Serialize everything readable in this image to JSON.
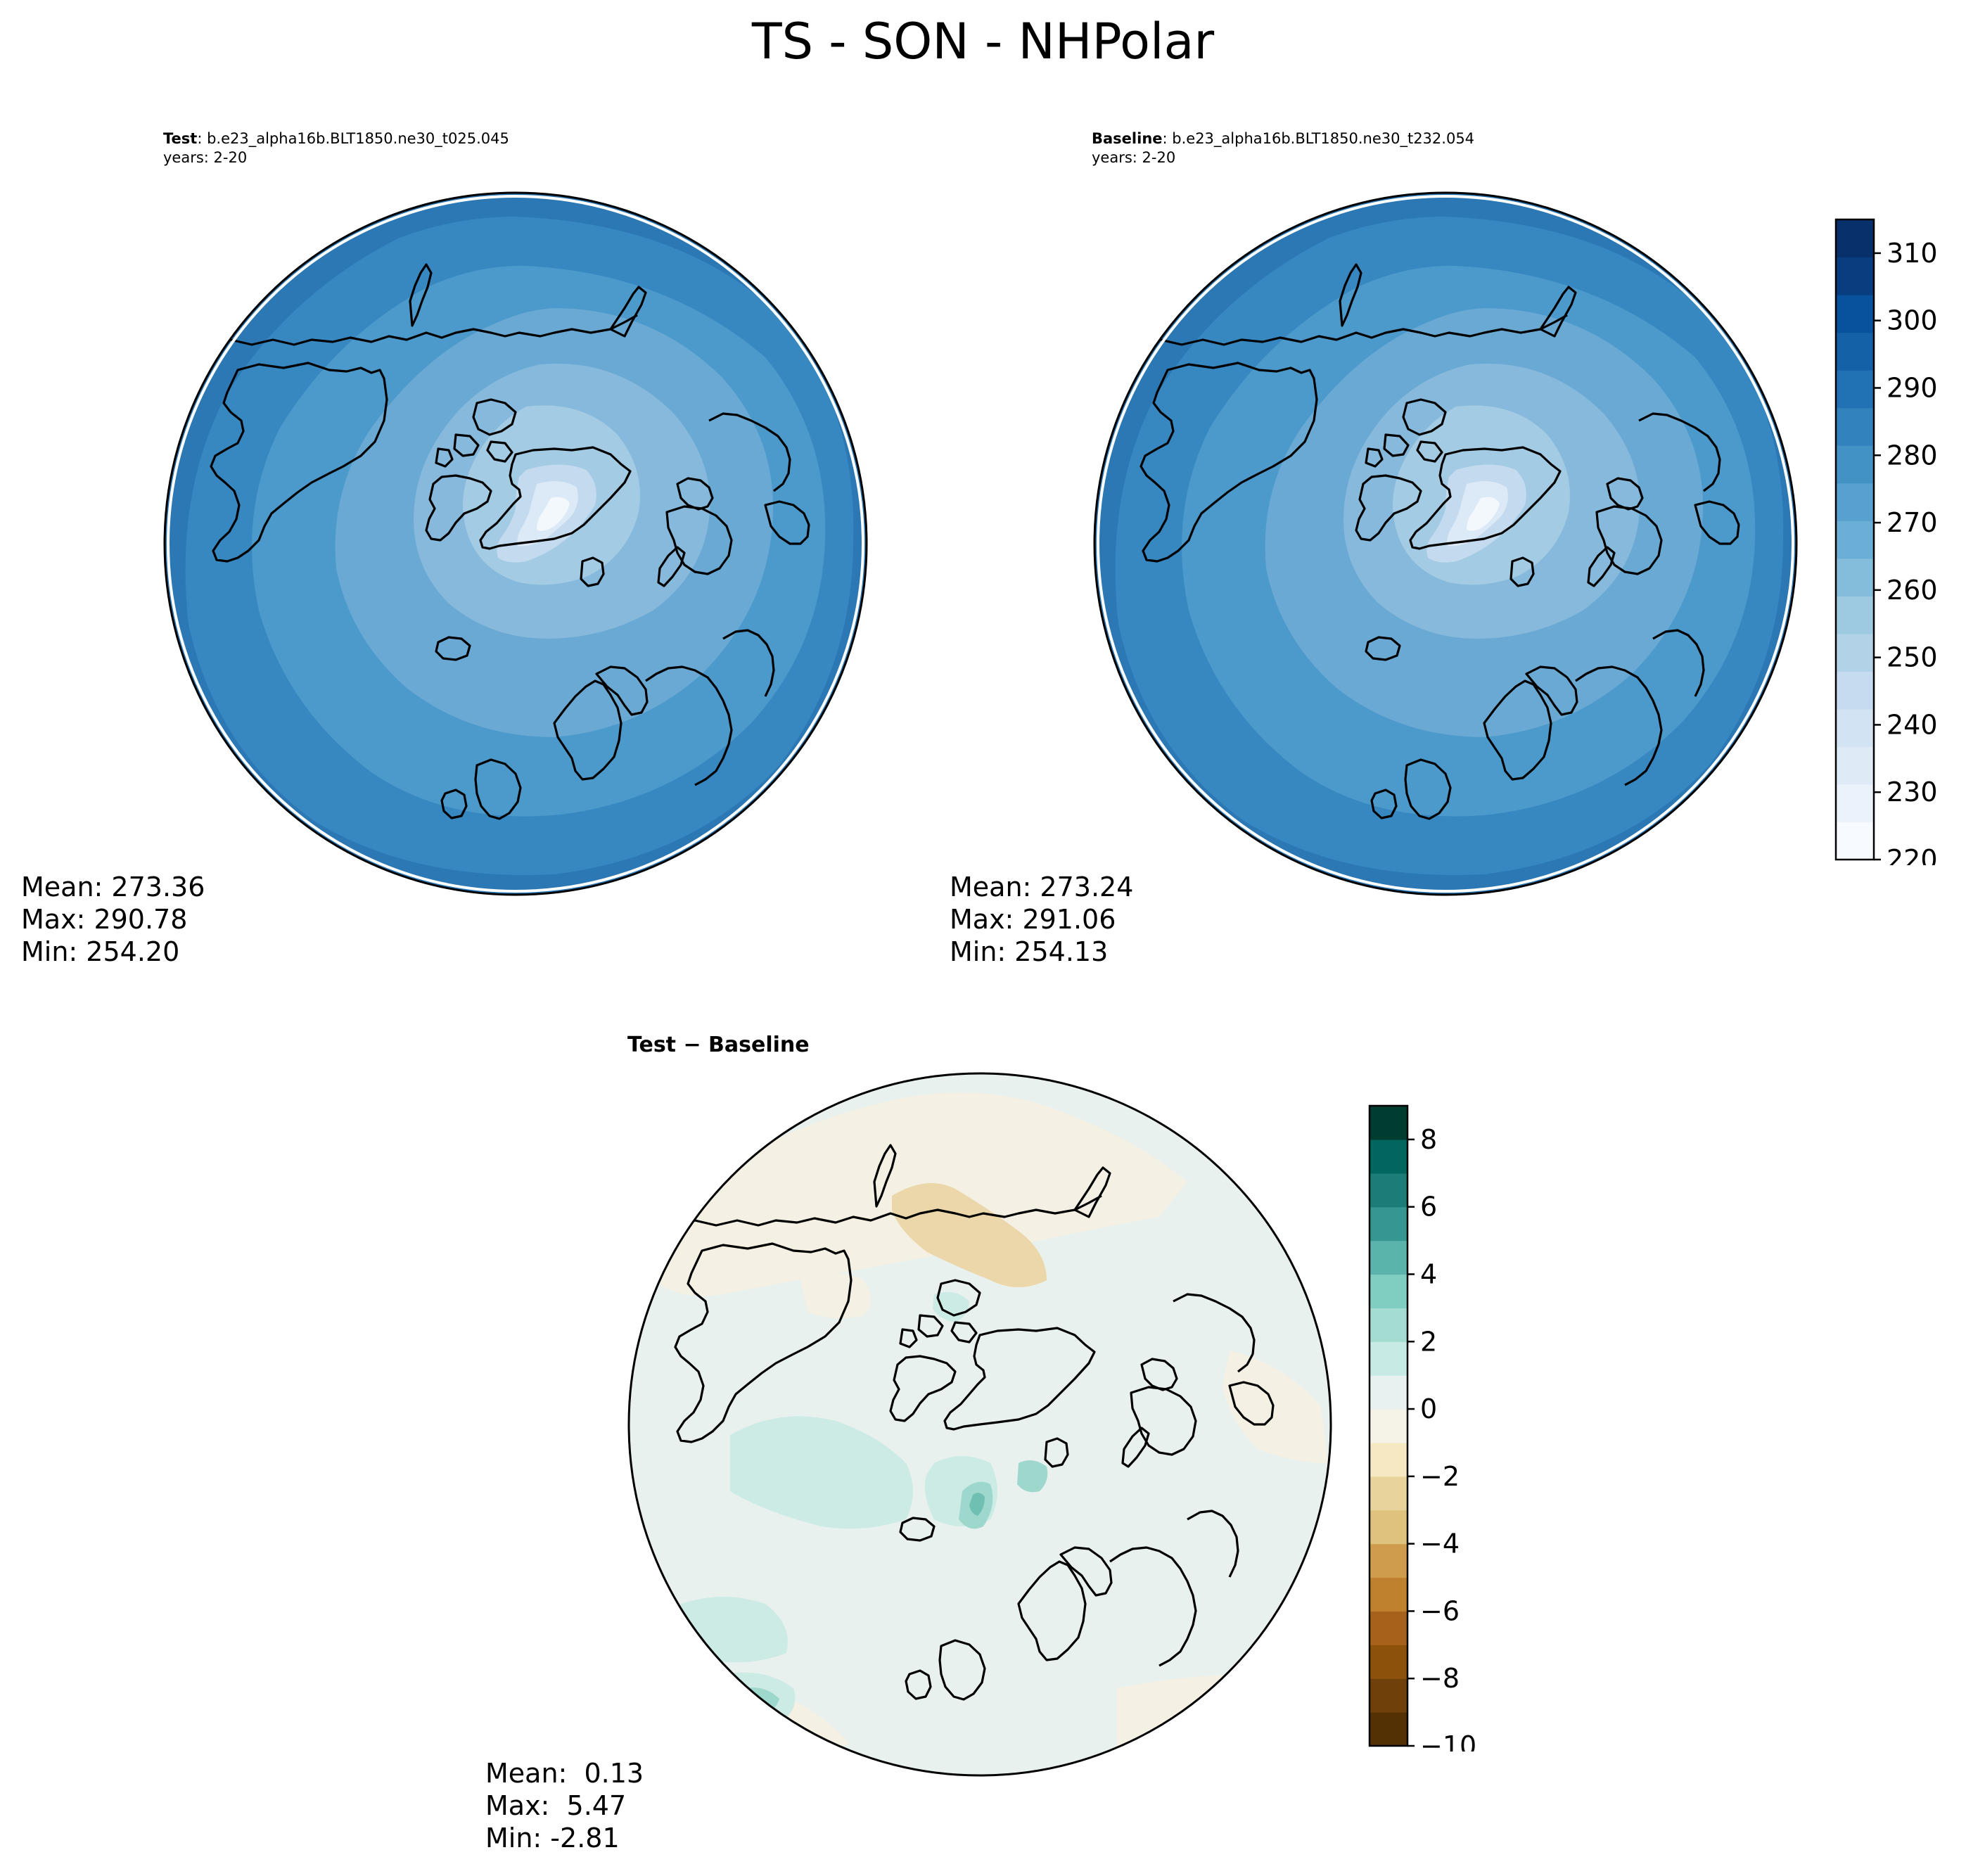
{
  "figure": {
    "title": "TS - SON - NHPolar"
  },
  "panels": {
    "test": {
      "label": "Test",
      "case": ": b.e23_alpha16b.BLT1850.ne30_t025.045",
      "years": "years: 2-20",
      "stats": {
        "mean": "Mean: 273.36",
        "max": "Max: 290.78",
        "min": "Min: 254.20"
      }
    },
    "baseline": {
      "label": "Baseline",
      "case": ": b.e23_alpha16b.BLT1850.ne30_t232.054",
      "years": "years: 2-20",
      "stats": {
        "mean": "Mean: 273.24",
        "max": "Max: 291.06",
        "min": "Min: 254.13"
      }
    },
    "diff": {
      "title": "Test − Baseline",
      "stats": {
        "mean": "Mean:  0.13",
        "max": "Max:  5.47",
        "min": "Min: -2.81"
      }
    }
  },
  "colorbars": {
    "main": {
      "ticks": [
        "310",
        "300",
        "290",
        "280",
        "270",
        "260",
        "250",
        "240",
        "230",
        "220"
      ],
      "tick_values": [
        310,
        300,
        290,
        280,
        270,
        260,
        250,
        240,
        230,
        220
      ],
      "range": [
        220,
        315
      ],
      "colors": [
        "#f7fbff",
        "#eaf3fb",
        "#deebf7",
        "#d2e3f3",
        "#c6dbef",
        "#b2d2e8",
        "#9ecae1",
        "#84bcdb",
        "#6baed6",
        "#57a0cf",
        "#4292c6",
        "#3282be",
        "#2171b5",
        "#1461a8",
        "#08519c",
        "#083e80",
        "#08306b"
      ]
    },
    "diff": {
      "ticks": [
        "8",
        "6",
        "4",
        "2",
        "0",
        "−2",
        "−4",
        "−6",
        "−8",
        "−10"
      ],
      "tick_values": [
        8,
        6,
        4,
        2,
        0,
        -2,
        -4,
        -6,
        -8,
        -10
      ],
      "range": [
        -10,
        9
      ],
      "colors": [
        "#543005",
        "#6f400a",
        "#8c510a",
        "#a6611a",
        "#bf812d",
        "#cf9c4d",
        "#dfc27d",
        "#e8d49b",
        "#f6e8c3",
        "#f5f2e8",
        "#e8f1ef",
        "#c7eae5",
        "#a4dcd2",
        "#80cdc1",
        "#5ab4ac",
        "#35978f",
        "#1b7d76",
        "#01665e",
        "#003c30"
      ]
    }
  },
  "maps": {
    "main_colors": {
      "outer": "#2b78b5",
      "ring2": "#3787c1",
      "ring3": "#4c99cb",
      "ring4": "#69a9d4",
      "ring5": "#86b9db",
      "ring6": "#a3cbe3",
      "ice1": "#c4daee",
      "ice2": "#dce9f6",
      "ice3": "#f3f8fd"
    },
    "diff_colors": {
      "background": "#e9f1ef",
      "warm": "#f4f0e3",
      "orange": "#ebd7a9",
      "teal1": "#cdebe5",
      "teal2": "#9ed8cd",
      "teal3": "#6fc0b3"
    }
  }
}
